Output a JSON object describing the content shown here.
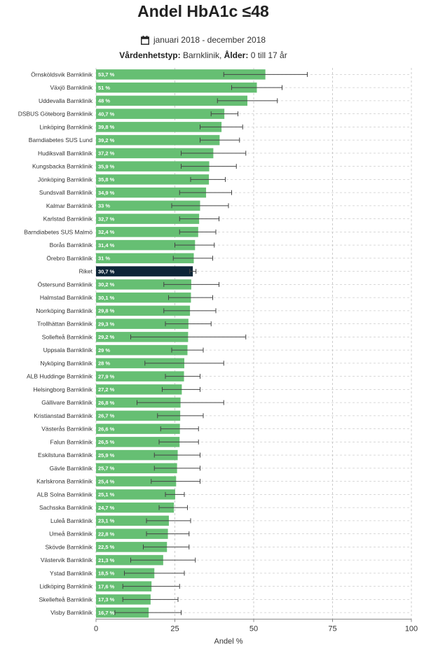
{
  "header": {
    "title": "Andel HbA1c ≤48",
    "period": "januari 2018 - december 2018",
    "filter_label_1": "Vårdenhetstyp:",
    "filter_value_1": "Barnklinik,",
    "filter_label_2": "Ålder:",
    "filter_value_2": "0 till 17 år",
    "calendar_icon": "calendar-icon"
  },
  "colors": {
    "bar": "#66bf73",
    "highlight": "#0d2537",
    "error": "#444444",
    "grid": "#cccccc"
  },
  "chart_data": {
    "type": "bar",
    "orientation": "horizontal",
    "title": "Andel HbA1c ≤48",
    "xlabel": "Andel %",
    "ylabel": "",
    "xlim": [
      0,
      100
    ],
    "xticks": [
      0,
      25,
      50,
      75,
      100
    ],
    "grid": true,
    "highlight_category": "Riket",
    "categories": [
      "Örnsköldsvik Barnklinik",
      "Växjö Barnklinik",
      "Uddevalla Barnklinik",
      "DSBUS Göteborg Barnklinik",
      "Linköping Barnklinik",
      "Barndiabetes SUS Lund",
      "Hudiksvall Barnklinik",
      "Kungsbacka Barnklinik",
      "Jönköping Barnklinik",
      "Sundsvall Barnklinik",
      "Kalmar Barnklinik",
      "Karlstad Barnklinik",
      "Barndiabetes SUS Malmö",
      "Borås Barnklinik",
      "Örebro Barnklinik",
      "Riket",
      "Östersund Barnklinik",
      "Halmstad Barnklinik",
      "Norrköping Barnklinik",
      "Trollhättan Barnklinik",
      "Sollefteå Barnklinik",
      "Uppsala Barnklinik",
      "Nyköping Barnklinik",
      "ALB Huddinge Barnklinik",
      "Helsingborg Barnklinik",
      "Gällivare Barnklinik",
      "Kristianstad Barnklinik",
      "Västerås Barnklinik",
      "Falun Barnklinik",
      "Eskilstuna Barnklinik",
      "Gävle Barnklinik",
      "Karlskrona Barnklinik",
      "ALB Solna Barnklinik",
      "Sachsska Barnklinik",
      "Luleå Barnklinik",
      "Umeå Barnklinik",
      "Skövde Barnklinik",
      "Västervik Barnklinik",
      "Ystad Barnklinik",
      "Lidköping Barnklinik",
      "Skellefteå Barnklinik",
      "Visby Barnklinik"
    ],
    "values": [
      53.7,
      51,
      48,
      40.7,
      39.8,
      39.2,
      37.2,
      35.9,
      35.8,
      34.9,
      33,
      32.7,
      32.4,
      31.4,
      31,
      30.7,
      30.2,
      30.1,
      29.8,
      29.3,
      29.2,
      29,
      28,
      27.9,
      27.2,
      26.8,
      26.7,
      26.6,
      26.5,
      25.9,
      25.7,
      25.4,
      25.1,
      24.7,
      23.1,
      22.8,
      22.5,
      21.3,
      18.5,
      17.6,
      17.3,
      16.7
    ],
    "value_labels": [
      "53,7 %",
      "51 %",
      "48 %",
      "40,7 %",
      "39,8 %",
      "39,2 %",
      "37,2 %",
      "35,9 %",
      "35,8 %",
      "34,9 %",
      "33 %",
      "32,7 %",
      "32,4 %",
      "31,4 %",
      "31 %",
      "30,7 %",
      "30,2 %",
      "30,1 %",
      "29,8 %",
      "29,3 %",
      "29,2 %",
      "29 %",
      "28 %",
      "27,9 %",
      "27,2 %",
      "26,8 %",
      "26,7 %",
      "26,6 %",
      "26,5 %",
      "25,9 %",
      "25,7 %",
      "25,4 %",
      "25,1 %",
      "24,7 %",
      "23,1 %",
      "22,8 %",
      "22,5 %",
      "21,3 %",
      "18,5 %",
      "17,6 %",
      "17,3 %",
      "16,7 %"
    ],
    "ci_low": [
      40.5,
      43,
      38.5,
      36.5,
      33,
      33,
      27,
      27,
      30,
      26.5,
      24,
      26.5,
      26.5,
      25,
      24.5,
      29.7,
      21.5,
      23,
      21.5,
      22,
      11,
      24,
      15.5,
      22,
      21,
      13,
      19.5,
      20.5,
      20,
      18.5,
      18.5,
      17.5,
      22,
      20,
      16,
      16,
      15,
      11,
      9,
      8.5,
      8.5,
      6
    ],
    "ci_high": [
      67,
      59,
      57.5,
      45,
      46.5,
      45.5,
      47.5,
      44.5,
      41,
      43,
      42,
      39,
      38,
      37.5,
      37,
      31.7,
      39,
      37,
      38,
      36.5,
      47.5,
      34,
      40.5,
      33,
      33,
      40.5,
      34,
      32.5,
      32.5,
      33,
      33,
      33,
      28,
      29,
      30,
      29.5,
      29.5,
      31.5,
      28,
      26.5,
      26,
      27
    ]
  }
}
